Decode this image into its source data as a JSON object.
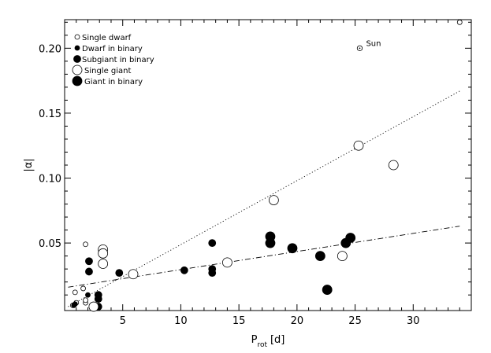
{
  "chart_data": {
    "type": "scatter",
    "title": "",
    "xlabel_main": "P",
    "xlabel_sub": "rot",
    "xlabel_unit": "[d]",
    "ylabel": "|α|",
    "xlim": [
      0,
      35
    ],
    "ylim": [
      -0.002,
      0.222
    ],
    "x_ticks": [
      {
        "value": 5,
        "label": "5"
      },
      {
        "value": 10,
        "label": "10"
      },
      {
        "value": 15,
        "label": "15"
      },
      {
        "value": 20,
        "label": "20"
      },
      {
        "value": 25,
        "label": "25"
      },
      {
        "value": 30,
        "label": "30"
      }
    ],
    "y_ticks": [
      {
        "value": 0.05,
        "label": "0.05"
      },
      {
        "value": 0.1,
        "label": "0.10"
      },
      {
        "value": 0.15,
        "label": "0.15"
      },
      {
        "value": 0.2,
        "label": "0.20"
      }
    ],
    "grid": false,
    "legend_position": "top-left",
    "series": [
      {
        "name": "Single dwarf",
        "marker": "open",
        "size": "small",
        "points": [
          [
            0.7,
            0.002
          ],
          [
            0.9,
            0.012
          ],
          [
            1.0,
            0.004
          ],
          [
            1.6,
            0.015
          ],
          [
            1.8,
            0.049
          ],
          [
            1.8,
            0.004
          ],
          [
            1.8,
            0.006
          ]
        ]
      },
      {
        "name": "Dwarf in binary",
        "marker": "filled",
        "size": "small",
        "points": [
          [
            0.8,
            0.002
          ],
          [
            0.9,
            0.003
          ],
          [
            2.0,
            0.01
          ]
        ]
      },
      {
        "name": "Subgiant in binary",
        "marker": "filled",
        "size": "medium",
        "points": [
          [
            2.1,
            0.028
          ],
          [
            2.1,
            0.036
          ],
          [
            2.9,
            0.001
          ],
          [
            2.9,
            0.007
          ],
          [
            2.9,
            0.01
          ],
          [
            4.7,
            0.027
          ],
          [
            10.3,
            0.029
          ],
          [
            12.7,
            0.05
          ],
          [
            12.7,
            0.03
          ],
          [
            12.7,
            0.027
          ]
        ]
      },
      {
        "name": "Single giant",
        "marker": "open",
        "size": "large",
        "points": [
          [
            2.5,
            0.001
          ],
          [
            3.3,
            0.045
          ],
          [
            3.3,
            0.042
          ],
          [
            3.3,
            0.034
          ],
          [
            5.9,
            0.026
          ],
          [
            14.0,
            0.035
          ],
          [
            18.0,
            0.083
          ],
          [
            23.9,
            0.04
          ],
          [
            25.3,
            0.125
          ],
          [
            28.3,
            0.11
          ]
        ]
      },
      {
        "name": "Giant in binary",
        "marker": "filled",
        "size": "large",
        "points": [
          [
            17.7,
            0.055
          ],
          [
            17.7,
            0.05
          ],
          [
            19.6,
            0.046
          ],
          [
            22.0,
            0.04
          ],
          [
            22.6,
            0.014
          ],
          [
            24.2,
            0.05
          ],
          [
            24.6,
            0.054
          ]
        ]
      }
    ],
    "extra_points": [
      {
        "x": 34.0,
        "y": 0.22,
        "marker": "open",
        "size": "small"
      }
    ],
    "sun": {
      "label": "Sun",
      "x": 25.4,
      "y": 0.2
    },
    "fit_lines": [
      {
        "style": "dotted",
        "x": [
          0.3,
          34.0
        ],
        "y": [
          0.001,
          0.167
        ]
      },
      {
        "style": "dash-dot",
        "x": [
          0.3,
          34.0
        ],
        "y": [
          0.016,
          0.063
        ]
      }
    ]
  }
}
